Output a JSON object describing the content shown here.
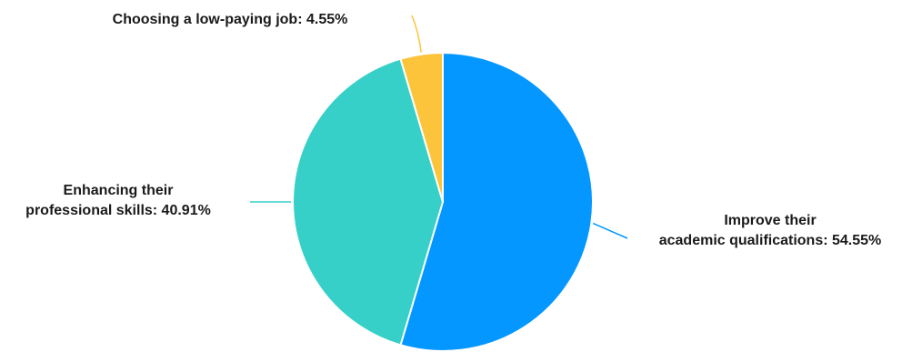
{
  "chart_data": {
    "type": "pie",
    "title": "",
    "start_angle_deg": 0,
    "direction": "clockwise",
    "slices": [
      {
        "label": "Improve their academic qualifications: 54.55%",
        "label_lines": [
          "Improve their",
          "academic qualifications: 54.55%"
        ],
        "category": "Improve their academic qualifications",
        "value": 54.55,
        "color": "#0397FF",
        "label_side": "right"
      },
      {
        "label": "Enhancing their professional skills: 40.91%",
        "label_lines": [
          "Enhancing their",
          "professional skills: 40.91%"
        ],
        "category": "Enhancing their professional skills",
        "value": 40.91,
        "color": "#36D0C8",
        "label_side": "left"
      },
      {
        "label": "Choosing a low-paying job: 4.55%",
        "label_lines": [
          "Choosing a low-paying job: 4.55%"
        ],
        "category": "Choosing a low-paying job",
        "value": 4.55,
        "color": "#FCC43B",
        "label_side": "top"
      }
    ]
  }
}
